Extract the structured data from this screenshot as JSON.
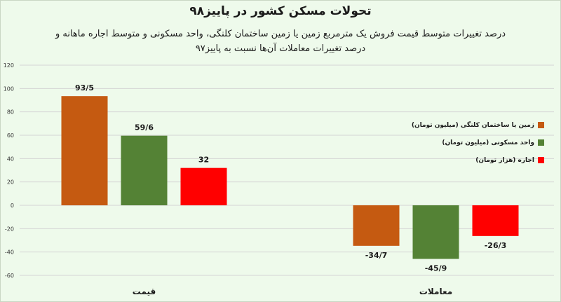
{
  "chart_data": {
    "type": "bar",
    "title": "تحولات مسکن کشور در پاییز۹۸",
    "subtitle_lines": [
      "درصد تغییرات متوسط قیمت فروش یک مترمربع زمین یا زمین ساختمان کلنگی، واحد مسکونی و متوسط اجاره ماهانه و",
      "درصد تغییرات معاملات آن‌ها نسبت به پاییز۹۷"
    ],
    "categories": [
      "قیمت",
      "معاملات"
    ],
    "series": [
      {
        "name": "زمین یا ساختمان کلنگی (میلیون تومان)",
        "color": "#c55a11",
        "values": [
          93.5,
          -34.7
        ],
        "labels": [
          "93/5",
          "-34/7"
        ]
      },
      {
        "name": "واحد مسکونی (میلیون تومان)",
        "color": "#548235",
        "values": [
          59.6,
          -45.9
        ],
        "labels": [
          "59/6",
          "-45/9"
        ]
      },
      {
        "name": "اجاره (هزار تومان)",
        "color": "#ff0000",
        "values": [
          32,
          -26.3
        ],
        "labels": [
          "32",
          "-26/3"
        ]
      }
    ],
    "ylim": [
      -60,
      120
    ],
    "yticks": [
      -60,
      -40,
      -20,
      0,
      20,
      40,
      60,
      80,
      100,
      120
    ],
    "grid": true,
    "legend": "right"
  }
}
